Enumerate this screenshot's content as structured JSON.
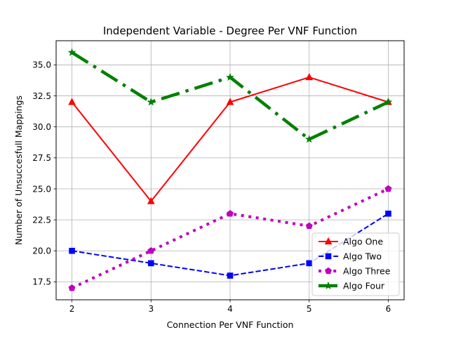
{
  "chart_data": {
    "type": "line",
    "title": "Independent Variable - Degree Per VNF Function",
    "xlabel": "Connection Per VNF Function",
    "ylabel": "Number of Unsuccesfull Mappings",
    "x": [
      2,
      3,
      4,
      5,
      6
    ],
    "xlim": [
      1.8,
      6.2
    ],
    "ylim": [
      16.05,
      36.95
    ],
    "xticks": [
      2,
      3,
      4,
      5,
      6
    ],
    "yticks": [
      17.5,
      20.0,
      22.5,
      25.0,
      27.5,
      30.0,
      32.5,
      35.0
    ],
    "ytick_labels": [
      "17.5",
      "20.0",
      "22.5",
      "25.0",
      "27.5",
      "30.0",
      "32.5",
      "35.0"
    ],
    "grid": true,
    "legend_position": "bottom-right",
    "series": [
      {
        "name": "Algo One",
        "values": [
          32,
          24,
          32,
          34,
          32
        ],
        "color": "#ff0000",
        "line_style": "solid",
        "marker": "triangle"
      },
      {
        "name": "Algo Two",
        "values": [
          20,
          19,
          18,
          19,
          23
        ],
        "color": "#0000ff",
        "line_style": "dashed",
        "marker": "square"
      },
      {
        "name": "Algo Three",
        "values": [
          17,
          20,
          23,
          22,
          25
        ],
        "color": "#bf00bf",
        "line_style": "dotted",
        "marker": "pentagon"
      },
      {
        "name": "Algo Four",
        "values": [
          36,
          32,
          34,
          29,
          32
        ],
        "color": "#008000",
        "line_style": "dashdot",
        "marker": "star"
      }
    ]
  }
}
